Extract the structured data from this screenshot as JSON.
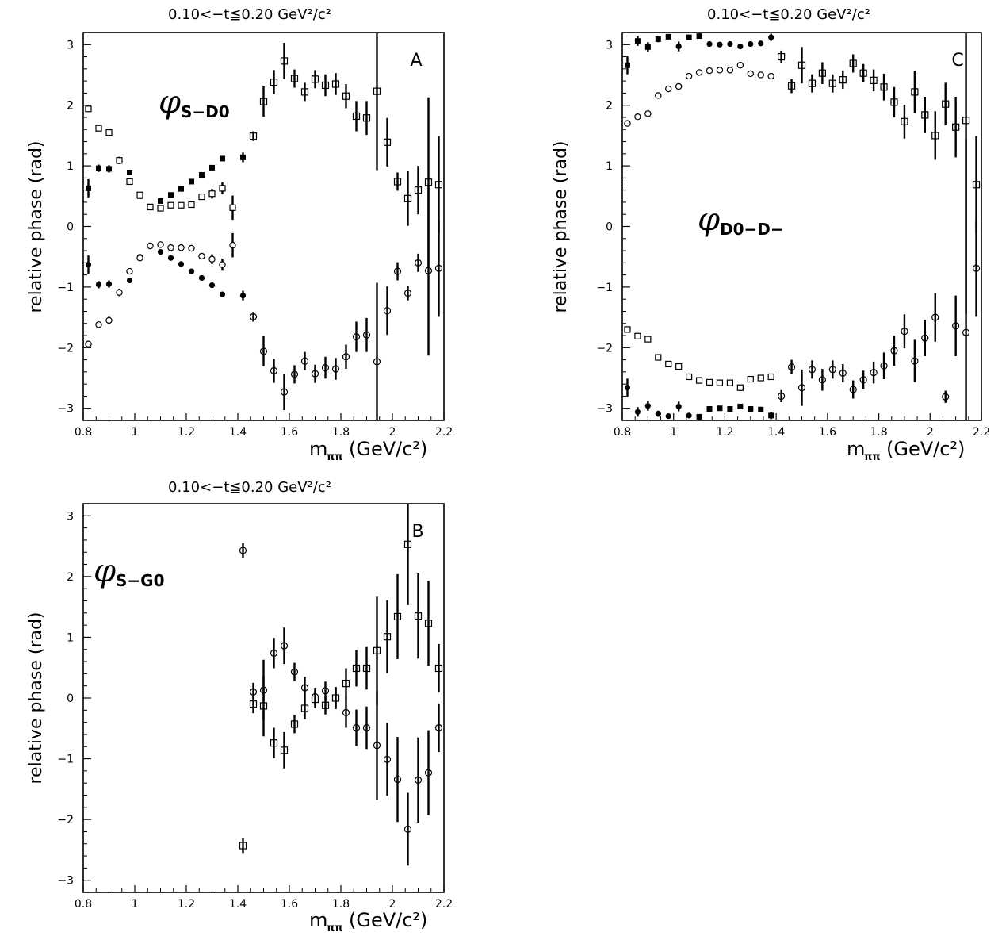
{
  "chart_data": [
    {
      "id": "A",
      "type": "scatter",
      "title": "0.10<−t≦0.20 GeV²/c²",
      "panel_letter": "A",
      "annotation": {
        "symbol": "φ",
        "sub": "S−D0"
      },
      "ylabel": "relative phase (rad)",
      "xlabel": {
        "main": "m",
        "sub": "ππ",
        "unit": "(GeV/c²)"
      },
      "xlim": [
        0.8,
        2.2
      ],
      "ylim": [
        -3.2,
        3.2
      ],
      "xticks": [
        "0.8",
        "1",
        "1.2",
        "1.4",
        "1.6",
        "1.8",
        "2",
        "2.2"
      ],
      "yticks": [
        "−3",
        "−2",
        "−1",
        "0",
        "1",
        "2",
        "3"
      ],
      "grid": false,
      "series": [
        {
          "marker": "filled-square",
          "x": [
            0.82,
            0.86,
            0.9,
            0.94,
            0.98,
            1.02,
            1.06,
            1.1,
            1.14,
            1.18,
            1.22,
            1.26,
            1.3,
            1.34,
            1.42
          ],
          "y": [
            0.63,
            0.96,
            0.95,
            1.08,
            0.89,
            0.5,
            0.33,
            0.42,
            0.52,
            0.62,
            0.74,
            0.85,
            0.97,
            1.12,
            1.14
          ],
          "err": [
            0.15,
            0.06,
            0.06,
            0.05,
            0.04,
            0.03,
            0.03,
            0.03,
            0.03,
            0.03,
            0.03,
            0.03,
            0.03,
            0.03,
            0.08
          ]
        },
        {
          "marker": "filled-circle",
          "x": [
            0.82,
            0.86,
            0.9,
            0.94,
            0.98,
            1.02,
            1.06,
            1.1,
            1.14,
            1.18,
            1.22,
            1.26,
            1.3,
            1.34,
            1.42
          ],
          "y": [
            -0.63,
            -0.96,
            -0.95,
            -1.08,
            -0.89,
            -0.5,
            -0.33,
            -0.42,
            -0.52,
            -0.62,
            -0.74,
            -0.85,
            -0.97,
            -1.12,
            -1.14
          ],
          "err": [
            0.15,
            0.06,
            0.06,
            0.05,
            0.04,
            0.03,
            0.03,
            0.03,
            0.03,
            0.03,
            0.03,
            0.03,
            0.03,
            0.03,
            0.08
          ]
        },
        {
          "marker": "open-square",
          "x": [
            0.82,
            0.86,
            0.9,
            0.94,
            0.98,
            1.02,
            1.06,
            1.1,
            1.14,
            1.18,
            1.22,
            1.26,
            1.3,
            1.34,
            1.38
          ],
          "y": [
            1.94,
            1.62,
            1.55,
            1.09,
            0.74,
            0.52,
            0.32,
            0.3,
            0.35,
            0.35,
            0.36,
            0.49,
            0.54,
            0.63,
            0.31
          ],
          "err": [
            0.05,
            0.05,
            0.06,
            0.06,
            0.05,
            0.04,
            0.03,
            0.03,
            0.03,
            0.03,
            0.04,
            0.05,
            0.08,
            0.1,
            0.2
          ]
        },
        {
          "marker": "open-circle",
          "x": [
            0.82,
            0.86,
            0.9,
            0.94,
            0.98,
            1.02,
            1.06,
            1.1,
            1.14,
            1.18,
            1.22,
            1.26,
            1.3,
            1.34,
            1.38
          ],
          "y": [
            -1.94,
            -1.62,
            -1.55,
            -1.09,
            -0.74,
            -0.52,
            -0.32,
            -0.3,
            -0.35,
            -0.35,
            -0.36,
            -0.49,
            -0.54,
            -0.63,
            -0.31
          ],
          "err": [
            0.05,
            0.05,
            0.06,
            0.06,
            0.05,
            0.04,
            0.03,
            0.03,
            0.03,
            0.03,
            0.04,
            0.05,
            0.08,
            0.1,
            0.2
          ]
        },
        {
          "marker": "open-square-filled-dot",
          "x": [
            1.46,
            1.5,
            1.54,
            1.58,
            1.62,
            1.66,
            1.7,
            1.74,
            1.78,
            1.82,
            1.86,
            1.9,
            1.94,
            1.98,
            2.02,
            2.06,
            2.1,
            2.14,
            2.18
          ],
          "y": [
            1.49,
            2.06,
            2.38,
            2.73,
            2.44,
            2.22,
            2.43,
            2.33,
            2.35,
            2.15,
            1.82,
            1.79,
            2.23,
            1.39,
            0.74,
            0.46,
            0.6,
            0.73,
            0.69
          ],
          "err": [
            0.08,
            0.25,
            0.2,
            0.3,
            0.15,
            0.15,
            0.15,
            0.18,
            0.18,
            0.2,
            0.25,
            0.28,
            1.3,
            0.4,
            0.15,
            0.45,
            0.4,
            1.4,
            0.8
          ]
        },
        {
          "marker": "open-circle-filled-dot",
          "x": [
            1.46,
            1.5,
            1.54,
            1.58,
            1.62,
            1.66,
            1.7,
            1.74,
            1.78,
            1.82,
            1.86,
            1.9,
            1.94,
            1.98,
            2.02,
            2.06,
            2.1,
            2.14,
            2.18
          ],
          "y": [
            -1.49,
            -2.06,
            -2.38,
            -2.73,
            -2.44,
            -2.22,
            -2.43,
            -2.33,
            -2.35,
            -2.15,
            -1.82,
            -1.79,
            -2.23,
            -1.39,
            -0.74,
            -1.1,
            -0.6,
            -0.73,
            -0.69
          ],
          "err": [
            0.08,
            0.25,
            0.2,
            0.3,
            0.15,
            0.15,
            0.15,
            0.18,
            0.18,
            0.2,
            0.25,
            0.28,
            1.3,
            0.4,
            0.15,
            0.12,
            0.15,
            1.4,
            0.8
          ]
        }
      ]
    },
    {
      "id": "C",
      "type": "scatter",
      "title": "0.10<−t≦0.20 GeV²/c²",
      "panel_letter": "C",
      "annotation": {
        "symbol": "φ",
        "sub": "D0−D−"
      },
      "ylabel": "relative phase (rad)",
      "xlabel": {
        "main": "m",
        "sub": "ππ",
        "unit": "(GeV/c²)"
      },
      "xlim": [
        0.8,
        2.2
      ],
      "ylim": [
        -3.2,
        3.2
      ],
      "xticks": [
        "0.8",
        "1",
        "1.2",
        "1.4",
        "1.6",
        "1.8",
        "2",
        "2.2"
      ],
      "yticks": [
        "−3",
        "−2",
        "−1",
        "0",
        "1",
        "2",
        "3"
      ],
      "grid": false,
      "series": [
        {
          "marker": "filled-square",
          "x": [
            0.82,
            0.86,
            0.9,
            0.94,
            0.98,
            1.06,
            1.1
          ],
          "y": [
            2.66,
            3.06,
            2.96,
            3.09,
            3.13,
            3.12,
            3.14
          ],
          "err": [
            0.15,
            0.08,
            0.08,
            0.05,
            0.04,
            0.03,
            0.03
          ]
        },
        {
          "marker": "filled-circle",
          "x": [
            1.02,
            1.14,
            1.18,
            1.22,
            1.26,
            1.3,
            1.34,
            1.38
          ],
          "y": [
            2.97,
            3.01,
            3.0,
            3.01,
            2.97,
            3.01,
            3.02,
            3.12
          ],
          "err": [
            0.08,
            0.03,
            0.03,
            0.03,
            0.03,
            0.03,
            0.04,
            0.06
          ]
        },
        {
          "marker": "filled-circle",
          "x": [
            0.82,
            0.86,
            0.9,
            0.94,
            0.98,
            1.02,
            1.06
          ],
          "y": [
            -2.66,
            -3.06,
            -2.96,
            -3.09,
            -3.13,
            -2.97,
            -3.12
          ],
          "err": [
            0.15,
            0.08,
            0.08,
            0.05,
            0.04,
            0.08,
            0.03
          ]
        },
        {
          "marker": "filled-square",
          "x": [
            1.1,
            1.14,
            1.18,
            1.22,
            1.26,
            1.3,
            1.34,
            1.38
          ],
          "y": [
            -3.14,
            -3.01,
            -3.0,
            -3.01,
            -2.97,
            -3.01,
            -3.02,
            -3.12
          ],
          "err": [
            0.03,
            0.03,
            0.03,
            0.03,
            0.03,
            0.03,
            0.04,
            0.06
          ]
        },
        {
          "marker": "open-circle",
          "x": [
            0.82,
            0.86,
            0.9,
            0.94,
            0.98,
            1.02,
            1.06,
            1.1,
            1.14,
            1.18,
            1.22,
            1.26,
            1.3,
            1.34,
            1.38
          ],
          "y": [
            1.7,
            1.81,
            1.86,
            2.16,
            2.27,
            2.31,
            2.48,
            2.54,
            2.57,
            2.58,
            2.58,
            2.66,
            2.52,
            2.5,
            2.48
          ],
          "err": [
            0.03,
            0.03,
            0.03,
            0.03,
            0.03,
            0.03,
            0.03,
            0.03,
            0.03,
            0.03,
            0.03,
            0.03,
            0.03,
            0.03,
            0.03
          ]
        },
        {
          "marker": "open-square",
          "x": [
            0.82,
            0.86,
            0.9,
            0.94,
            0.98,
            1.02,
            1.06,
            1.1,
            1.14,
            1.18,
            1.22,
            1.26,
            1.3,
            1.34,
            1.38
          ],
          "y": [
            -1.7,
            -1.81,
            -1.86,
            -2.16,
            -2.27,
            -2.31,
            -2.48,
            -2.54,
            -2.57,
            -2.58,
            -2.58,
            -2.66,
            -2.52,
            -2.5,
            -2.48
          ],
          "err": [
            0.03,
            0.03,
            0.03,
            0.03,
            0.03,
            0.03,
            0.03,
            0.03,
            0.03,
            0.03,
            0.03,
            0.03,
            0.03,
            0.03,
            0.03
          ]
        },
        {
          "marker": "open-square-filled-dot",
          "x": [
            1.42,
            1.46,
            1.5,
            1.54,
            1.58,
            1.62,
            1.66,
            1.7,
            1.74,
            1.78,
            1.82,
            1.86,
            1.9,
            1.94,
            1.98,
            2.02,
            2.06,
            2.1,
            2.14,
            2.18
          ],
          "y": [
            2.8,
            2.32,
            2.66,
            2.36,
            2.53,
            2.36,
            2.42,
            2.69,
            2.53,
            2.41,
            2.3,
            2.05,
            1.73,
            2.22,
            1.84,
            1.5,
            2.02,
            1.64,
            1.75,
            0.69
          ],
          "err": [
            0.1,
            0.12,
            0.3,
            0.15,
            0.18,
            0.15,
            0.15,
            0.15,
            0.15,
            0.18,
            0.22,
            0.25,
            0.28,
            0.35,
            0.3,
            0.4,
            0.35,
            0.5,
            3.2,
            0.8
          ]
        },
        {
          "marker": "open-circle-filled-dot",
          "x": [
            1.42,
            1.46,
            1.5,
            1.54,
            1.58,
            1.62,
            1.66,
            1.7,
            1.74,
            1.78,
            1.82,
            1.86,
            1.9,
            1.94,
            1.98,
            2.02,
            2.06,
            2.1,
            2.14,
            2.18
          ],
          "y": [
            -2.8,
            -2.32,
            -2.66,
            -2.36,
            -2.53,
            -2.36,
            -2.42,
            -2.69,
            -2.53,
            -2.41,
            -2.3,
            -2.05,
            -1.73,
            -2.22,
            -1.84,
            -1.5,
            -2.81,
            -1.64,
            -1.75,
            -0.69
          ],
          "err": [
            0.1,
            0.12,
            0.3,
            0.15,
            0.18,
            0.15,
            0.15,
            0.15,
            0.15,
            0.18,
            0.22,
            0.25,
            0.28,
            0.35,
            0.3,
            0.4,
            0.1,
            0.5,
            3.2,
            0.8
          ]
        }
      ]
    },
    {
      "id": "B",
      "type": "scatter",
      "title": "0.10<−t≦0.20 GeV²/c²",
      "panel_letter": "B",
      "annotation": {
        "symbol": "φ",
        "sub": "S−G0"
      },
      "ylabel": "relative phase (rad)",
      "xlabel": {
        "main": "m",
        "sub": "ππ",
        "unit": "(GeV/c²)"
      },
      "xlim": [
        0.8,
        2.2
      ],
      "ylim": [
        -3.2,
        3.2
      ],
      "xticks": [
        "0.8",
        "1",
        "1.2",
        "1.4",
        "1.6",
        "1.8",
        "2",
        "2.2"
      ],
      "yticks": [
        "−3",
        "−2",
        "−1",
        "0",
        "1",
        "2",
        "3"
      ],
      "grid": false,
      "series": [
        {
          "marker": "open-circle-filled-dot",
          "x": [
            1.42,
            1.46,
            1.5,
            1.54,
            1.58,
            1.62,
            1.66,
            1.7,
            1.74,
            1.78,
            1.82,
            1.86,
            1.9,
            1.94,
            1.98,
            2.02,
            2.06,
            2.1,
            2.14,
            2.18
          ],
          "y": [
            2.43,
            0.1,
            0.13,
            0.74,
            0.86,
            0.43,
            0.17,
            0.02,
            0.12,
            0.0,
            -0.24,
            -0.49,
            -0.49,
            -0.78,
            -1.01,
            -1.34,
            -2.16,
            -1.35,
            -1.23,
            -0.49
          ],
          "err": [
            0.12,
            0.15,
            0.5,
            0.25,
            0.3,
            0.15,
            0.18,
            0.15,
            0.15,
            0.18,
            0.25,
            0.3,
            0.35,
            0.9,
            0.6,
            0.7,
            0.6,
            0.7,
            0.7,
            0.4
          ]
        },
        {
          "marker": "open-square-filled-dot",
          "x": [
            1.42,
            1.46,
            1.5,
            1.54,
            1.58,
            1.62,
            1.66,
            1.7,
            1.74,
            1.78,
            1.82,
            1.86,
            1.9,
            1.94,
            1.98,
            2.02,
            2.06,
            2.1,
            2.14,
            2.18
          ],
          "y": [
            -2.43,
            -0.1,
            -0.13,
            -0.74,
            -0.86,
            -0.43,
            -0.17,
            -0.02,
            -0.12,
            0.0,
            0.24,
            0.49,
            0.49,
            0.78,
            1.01,
            1.34,
            2.53,
            1.35,
            1.23,
            0.49
          ],
          "err": [
            0.12,
            0.15,
            0.5,
            0.25,
            0.3,
            0.15,
            0.18,
            0.15,
            0.15,
            0.18,
            0.25,
            0.3,
            0.35,
            0.9,
            0.6,
            0.7,
            1.0,
            0.7,
            0.7,
            0.4
          ]
        }
      ]
    }
  ]
}
